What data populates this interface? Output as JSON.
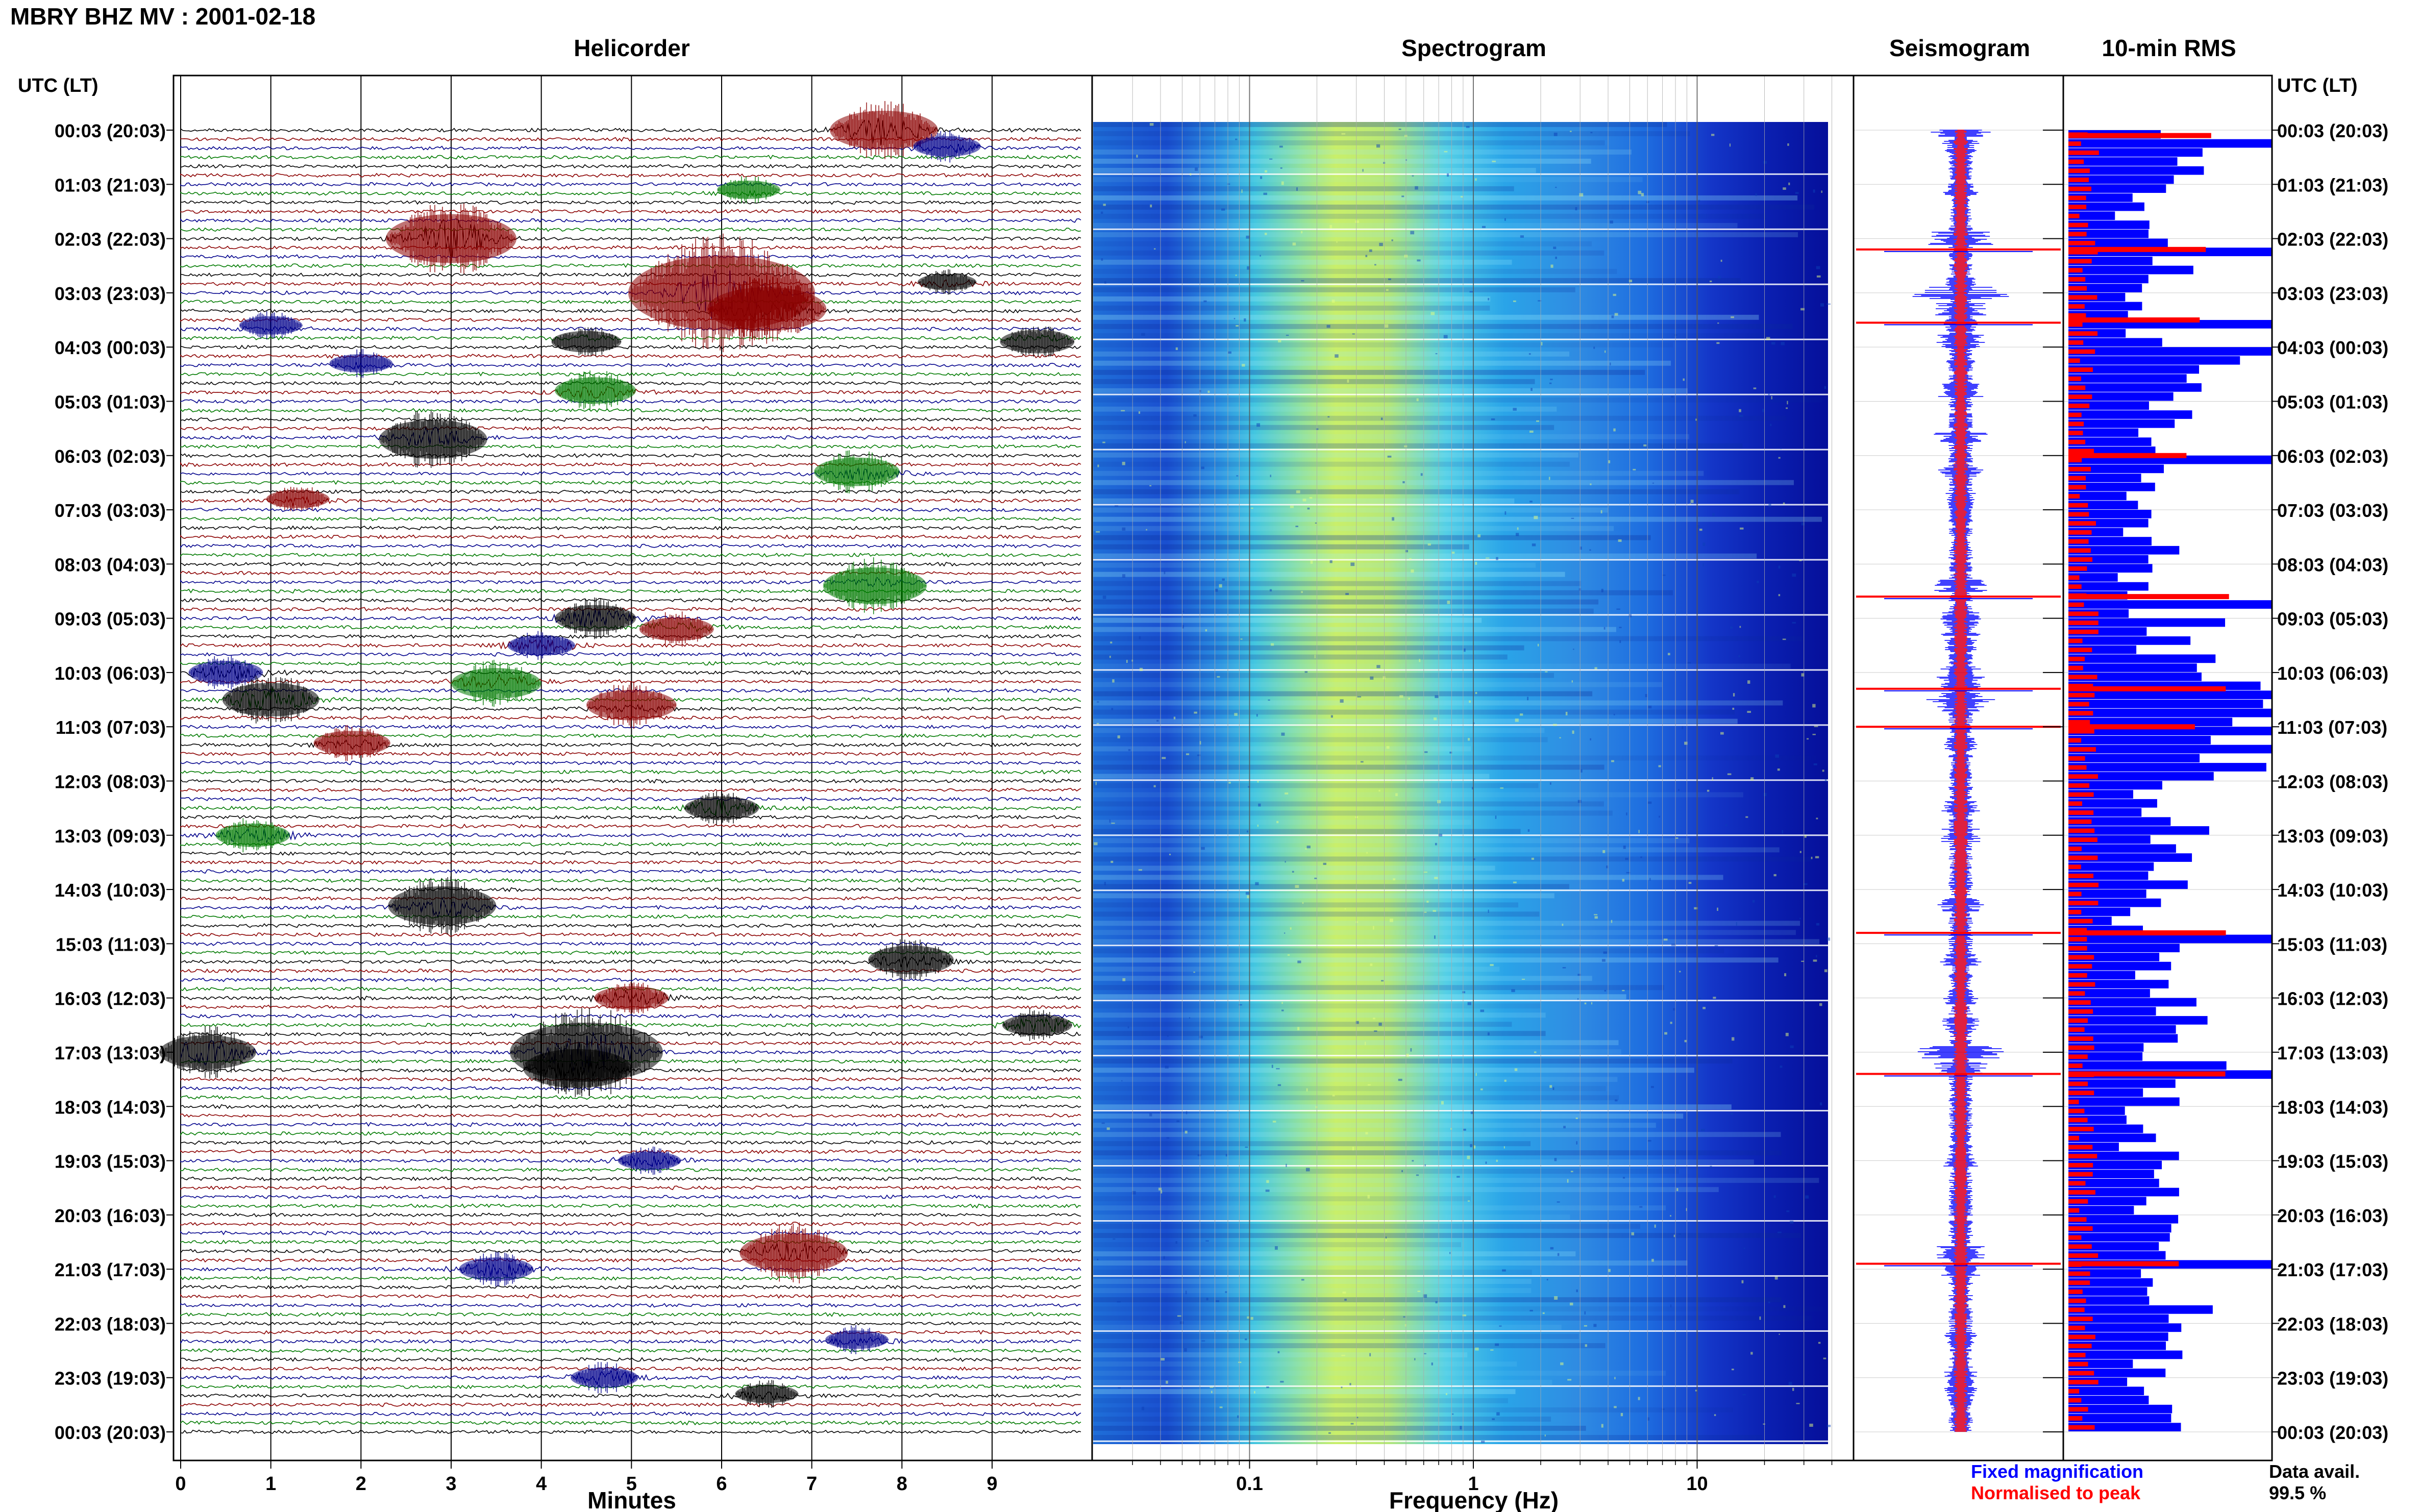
{
  "title": "MBRY BHZ MV : 2001-02-18",
  "panels": {
    "helicorder": "Helicorder",
    "spectrogram": "Spectrogram",
    "seismogram": "Seismogram",
    "rms": "10-min RMS"
  },
  "time_axis_label": "UTC (LT)",
  "time_labels": [
    "00:03 (20:03)",
    "01:03 (21:03)",
    "02:03 (22:03)",
    "03:03 (23:03)",
    "04:03 (00:03)",
    "05:03 (01:03)",
    "06:03 (02:03)",
    "07:03 (03:03)",
    "08:03 (04:03)",
    "09:03 (05:03)",
    "10:03 (06:03)",
    "11:03 (07:03)",
    "12:03 (08:03)",
    "13:03 (09:03)",
    "14:03 (10:03)",
    "15:03 (11:03)",
    "16:03 (12:03)",
    "17:03 (13:03)",
    "18:03 (14:03)",
    "19:03 (15:03)",
    "20:03 (16:03)",
    "21:03 (17:03)",
    "22:03 (18:03)",
    "23:03 (19:03)",
    "00:03 (20:03)"
  ],
  "helicorder_xlabel": "Minutes",
  "helicorder_xticks": [
    "0",
    "1",
    "2",
    "3",
    "4",
    "5",
    "6",
    "7",
    "8",
    "9"
  ],
  "spectrogram_xlabel": "Frequency (Hz)",
  "spectrogram_xticks": [
    "0.1",
    "1",
    "10"
  ],
  "legend": {
    "fixed": "Fixed magnification",
    "normalised": "Normalised to peak"
  },
  "data_avail": {
    "label": "Data avail.",
    "value": "99.5 %"
  },
  "colors": {
    "trace_black": "#000000",
    "trace_red": "#8b0000",
    "trace_blue": "#00008b",
    "trace_green": "#007a00",
    "fixed_blue": "#0000ff",
    "normalised_red": "#ff0000"
  },
  "chart_data": {
    "type": "heatmap",
    "helicorder": {
      "minutes_per_line": 10,
      "xlim": [
        0,
        10
      ],
      "events": [
        {
          "hour": 0.0,
          "minute": 7.8,
          "amp": 3.0,
          "color": "red"
        },
        {
          "hour": 0.3,
          "minute": 8.5,
          "amp": 1.2,
          "color": "blue"
        },
        {
          "hour": 1.1,
          "minute": 6.3,
          "amp": 1.0,
          "color": "green"
        },
        {
          "hour": 2.0,
          "minute": 3.0,
          "amp": 4.0,
          "color": "red"
        },
        {
          "hour": 2.8,
          "minute": 8.5,
          "amp": 0.8,
          "color": "black"
        },
        {
          "hour": 3.0,
          "minute": 6.0,
          "amp": 6.5,
          "color": "red"
        },
        {
          "hour": 3.3,
          "minute": 6.5,
          "amp": 3.5,
          "color": "red"
        },
        {
          "hour": 3.6,
          "minute": 1.0,
          "amp": 1.0,
          "color": "blue"
        },
        {
          "hour": 3.9,
          "minute": 4.5,
          "amp": 1.3,
          "color": "black"
        },
        {
          "hour": 3.9,
          "minute": 9.5,
          "amp": 1.5,
          "color": "black"
        },
        {
          "hour": 4.3,
          "minute": 2.0,
          "amp": 1.0,
          "color": "blue"
        },
        {
          "hour": 4.8,
          "minute": 4.6,
          "amp": 1.8,
          "color": "green"
        },
        {
          "hour": 5.7,
          "minute": 2.8,
          "amp": 3.0,
          "color": "black"
        },
        {
          "hour": 6.3,
          "minute": 7.5,
          "amp": 2.0,
          "color": "green"
        },
        {
          "hour": 6.8,
          "minute": 1.3,
          "amp": 1.0,
          "color": "red"
        },
        {
          "hour": 8.4,
          "minute": 7.7,
          "amp": 2.8,
          "color": "green"
        },
        {
          "hour": 9.0,
          "minute": 4.6,
          "amp": 1.8,
          "color": "black"
        },
        {
          "hour": 9.2,
          "minute": 5.5,
          "amp": 1.5,
          "color": "red"
        },
        {
          "hour": 9.5,
          "minute": 4.0,
          "amp": 1.2,
          "color": "blue"
        },
        {
          "hour": 10.0,
          "minute": 0.5,
          "amp": 1.5,
          "color": "blue"
        },
        {
          "hour": 10.2,
          "minute": 3.5,
          "amp": 2.2,
          "color": "green"
        },
        {
          "hour": 10.5,
          "minute": 1.0,
          "amp": 2.5,
          "color": "black"
        },
        {
          "hour": 10.6,
          "minute": 5.0,
          "amp": 2.2,
          "color": "red"
        },
        {
          "hour": 11.3,
          "minute": 1.9,
          "amp": 1.6,
          "color": "red"
        },
        {
          "hour": 12.5,
          "minute": 6.0,
          "amp": 1.5,
          "color": "black"
        },
        {
          "hour": 13.0,
          "minute": 0.8,
          "amp": 1.5,
          "color": "green"
        },
        {
          "hour": 14.3,
          "minute": 2.9,
          "amp": 3.0,
          "color": "black"
        },
        {
          "hour": 15.3,
          "minute": 8.1,
          "amp": 2.0,
          "color": "black"
        },
        {
          "hour": 16.0,
          "minute": 5.0,
          "amp": 1.5,
          "color": "red"
        },
        {
          "hour": 16.5,
          "minute": 9.5,
          "amp": 1.3,
          "color": "black"
        },
        {
          "hour": 17.0,
          "minute": 0.3,
          "amp": 2.5,
          "color": "black"
        },
        {
          "hour": 17.0,
          "minute": 4.5,
          "amp": 5.0,
          "color": "black"
        },
        {
          "hour": 17.3,
          "minute": 4.4,
          "amp": 3.0,
          "color": "black"
        },
        {
          "hour": 19.0,
          "minute": 5.2,
          "amp": 1.0,
          "color": "blue"
        },
        {
          "hour": 20.7,
          "minute": 6.8,
          "amp": 3.0,
          "color": "red"
        },
        {
          "hour": 21.0,
          "minute": 3.5,
          "amp": 1.5,
          "color": "blue"
        },
        {
          "hour": 22.3,
          "minute": 7.5,
          "amp": 1.0,
          "color": "blue"
        },
        {
          "hour": 23.0,
          "minute": 4.7,
          "amp": 1.2,
          "color": "blue"
        },
        {
          "hour": 23.3,
          "minute": 6.5,
          "amp": 1.0,
          "color": "black"
        }
      ]
    },
    "spectrogram": {
      "xscale": "log",
      "xlim": [
        0.02,
        50
      ],
      "rows": 144
    },
    "rms": {
      "interval_minutes": 10,
      "hourly_fixed_level": [
        0.55,
        0.35,
        0.45,
        0.4,
        0.75,
        0.5,
        0.45,
        0.4,
        0.3,
        0.55,
        0.8,
        1.0,
        0.5,
        0.45,
        0.35,
        0.45,
        0.5,
        0.6,
        0.4,
        0.45,
        0.4,
        0.55,
        0.4,
        0.4
      ],
      "spikes": [
        {
          "hour": 0.1,
          "value": 1.0
        },
        {
          "hour": 2.2,
          "value": 1.0
        },
        {
          "hour": 3.5,
          "value": 1.0
        },
        {
          "hour": 6.0,
          "value": 1.0
        },
        {
          "hour": 8.6,
          "value": 1.0
        },
        {
          "hour": 10.3,
          "value": 1.0
        },
        {
          "hour": 11.0,
          "value": 1.0
        },
        {
          "hour": 14.8,
          "value": 1.0
        },
        {
          "hour": 17.4,
          "value": 1.0
        },
        {
          "hour": 20.9,
          "value": 1.0
        }
      ]
    },
    "seismogram": {
      "spikes_hours": [
        2.2,
        3.55,
        8.6,
        10.3,
        11.0,
        14.8,
        17.4,
        20.9
      ]
    }
  }
}
